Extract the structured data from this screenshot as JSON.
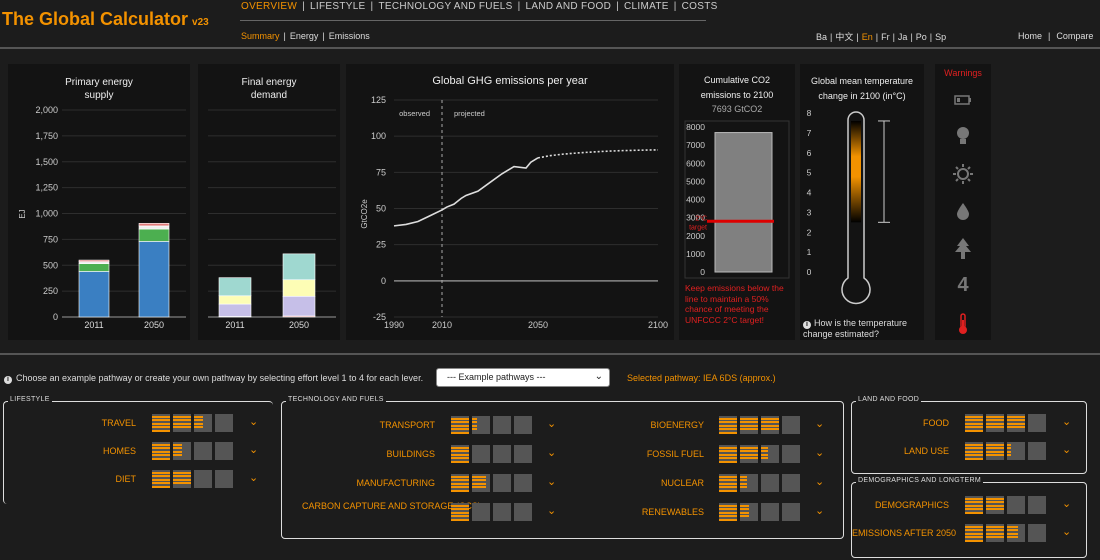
{
  "app": {
    "title": "The Global Calculator",
    "version": "v23"
  },
  "nav": [
    "OVERVIEW",
    "LIFESTYLE",
    "TECHNOLOGY AND FUELS",
    "LAND AND FOOD",
    "CLIMATE",
    "COSTS"
  ],
  "subnav": [
    "Summary",
    "Energy",
    "Emissions"
  ],
  "languages": [
    "Ba",
    "中文",
    "En",
    "Fr",
    "Ja",
    "Po",
    "Sp"
  ],
  "toplinks": [
    "Home",
    "Compare"
  ],
  "colors": {
    "accent": "#f39200",
    "warning": "#e02020",
    "target_line": "#dd0000"
  },
  "primary_energy": {
    "title_1": "Primary energy",
    "title_2": "supply",
    "unit": "EJ"
  },
  "final_energy": {
    "title_1": "Final energy",
    "title_2": "demand"
  },
  "ghg": {
    "title": "Global GHG emissions per year",
    "unit": "GtCO2e",
    "observed": "observed",
    "projected": "projected"
  },
  "cumulative": {
    "title_1": "Cumulative CO2",
    "title_2": "emissions to 2100",
    "value": "7693 GtCO2",
    "target": "2°C target",
    "note": "Keep emissions below the line to maintain a 50% chance of meeting the UNFCCC 2°C target!"
  },
  "temperature": {
    "title_1": "Global mean temperature",
    "title_2": "change in 2100 (in°C)",
    "question": "How is the temperature change estimated?"
  },
  "warnings": {
    "title": "Warnings",
    "icons": [
      "battery-icon",
      "bulb-icon",
      "sun-icon",
      "drop-icon",
      "tree-icon",
      "level-4-icon",
      "thermometer-icon"
    ],
    "number": "4"
  },
  "controls": {
    "choose_text": "Choose an example pathway or create your own pathway by selecting effort level 1 to 4 for each lever.",
    "example_select": "--- Example pathways ---",
    "selected_label": "Selected pathway: IEA 6DS (approx.)"
  },
  "groups": {
    "lifestyle": {
      "label": "LIFESTYLE",
      "levers": [
        "TRAVEL",
        "HOMES",
        "DIET"
      ],
      "levels": [
        2.5,
        1.5,
        2
      ]
    },
    "technology": {
      "label": "TECHNOLOGY AND FUELS",
      "left_levers": [
        "TRANSPORT",
        "BUILDINGS",
        "MANUFACTURING",
        "CARBON CAPTURE AND STORAGE (CCS)"
      ],
      "left_levels": [
        1.3,
        1,
        1.8,
        1
      ],
      "right_levers": [
        "BIOENERGY",
        "FOSSIL FUEL",
        "NUCLEAR",
        "RENEWABLES"
      ],
      "right_levels": [
        3,
        2.4,
        1.4,
        1.5
      ]
    },
    "land": {
      "label": "LAND AND FOOD",
      "levers": [
        "FOOD",
        "LAND USE"
      ],
      "levels": [
        3,
        2.2
      ]
    },
    "demographics": {
      "label": "DEMOGRAPHICS AND LONGTERM",
      "levers": [
        "DEMOGRAPHICS",
        "EMISSIONS AFTER 2050"
      ],
      "levels": [
        2,
        2.6
      ]
    }
  },
  "chart_data": [
    {
      "type": "bar",
      "title": "Primary energy supply",
      "ylabel": "EJ",
      "categories": [
        "2011",
        "2050"
      ],
      "ylim": [
        0,
        2000
      ],
      "yticks": [
        "0",
        "250",
        "500",
        "750",
        "1,000",
        "1,250",
        "1,500",
        "1,750",
        "2,000"
      ],
      "series": [
        {
          "values": [
            440,
            730
          ],
          "color": "#3a7fc2"
        },
        {
          "values": [
            75,
            120
          ],
          "color": "#4caf50"
        },
        {
          "values": [
            20,
            30
          ],
          "color": "#eeeeee"
        },
        {
          "values": [
            15,
            25
          ],
          "color": "#e07b7b"
        }
      ]
    },
    {
      "type": "bar",
      "title": "Final energy demand",
      "categories": [
        "2011",
        "2050"
      ],
      "ylim": [
        0,
        2000
      ],
      "series": [
        {
          "values": [
            5,
            10
          ],
          "color": "#e07b7b"
        },
        {
          "values": [
            120,
            190
          ],
          "color": "#c6bfe8"
        },
        {
          "values": [
            80,
            160
          ],
          "color": "#fdfdb5"
        },
        {
          "values": [
            175,
            250
          ],
          "color": "#9fd8d0"
        }
      ]
    },
    {
      "type": "line",
      "title": "Global GHG emissions per year",
      "ylabel": "GtCO2e",
      "ylim": [
        -25,
        125
      ],
      "xlim": [
        1990,
        2100
      ],
      "xticks": [
        "1990",
        "2010",
        "2050",
        "2100"
      ],
      "yticks": [
        "-25",
        "0",
        "25",
        "50",
        "75",
        "100",
        "125"
      ],
      "observed": {
        "x": [
          1990,
          1995,
          2000,
          2005,
          2010,
          2012,
          2015,
          2018,
          2020,
          2025,
          2030,
          2035,
          2040,
          2045,
          2047,
          2050
        ],
        "y": [
          38,
          39,
          41,
          45,
          49,
          51,
          53,
          57,
          59,
          62,
          68,
          74,
          79,
          78,
          82,
          85
        ]
      },
      "projected": {
        "x": [
          2050,
          2055,
          2060,
          2065,
          2070,
          2075,
          2080,
          2085,
          2090,
          2095,
          2100
        ],
        "y": [
          85,
          86.5,
          87.5,
          88.2,
          88.8,
          89.3,
          89.7,
          90,
          90.2,
          90.4,
          90.5
        ]
      },
      "divider_year": 2010
    },
    {
      "type": "bar",
      "title": "Cumulative CO2 emissions to 2100",
      "ylim": [
        0,
        8000
      ],
      "yticks": [
        "0",
        "1000",
        "2000",
        "3000",
        "4000",
        "5000",
        "6000",
        "7000",
        "8000"
      ],
      "value": 7693,
      "target": 2800
    },
    {
      "type": "gauge",
      "title": "Global mean temperature change in 2100 (in°C)",
      "ylim": [
        0,
        8
      ],
      "yticks": [
        "0",
        "1",
        "2",
        "3",
        "4",
        "5",
        "6",
        "7",
        "8"
      ],
      "range": [
        2.5,
        7.6
      ]
    }
  ]
}
